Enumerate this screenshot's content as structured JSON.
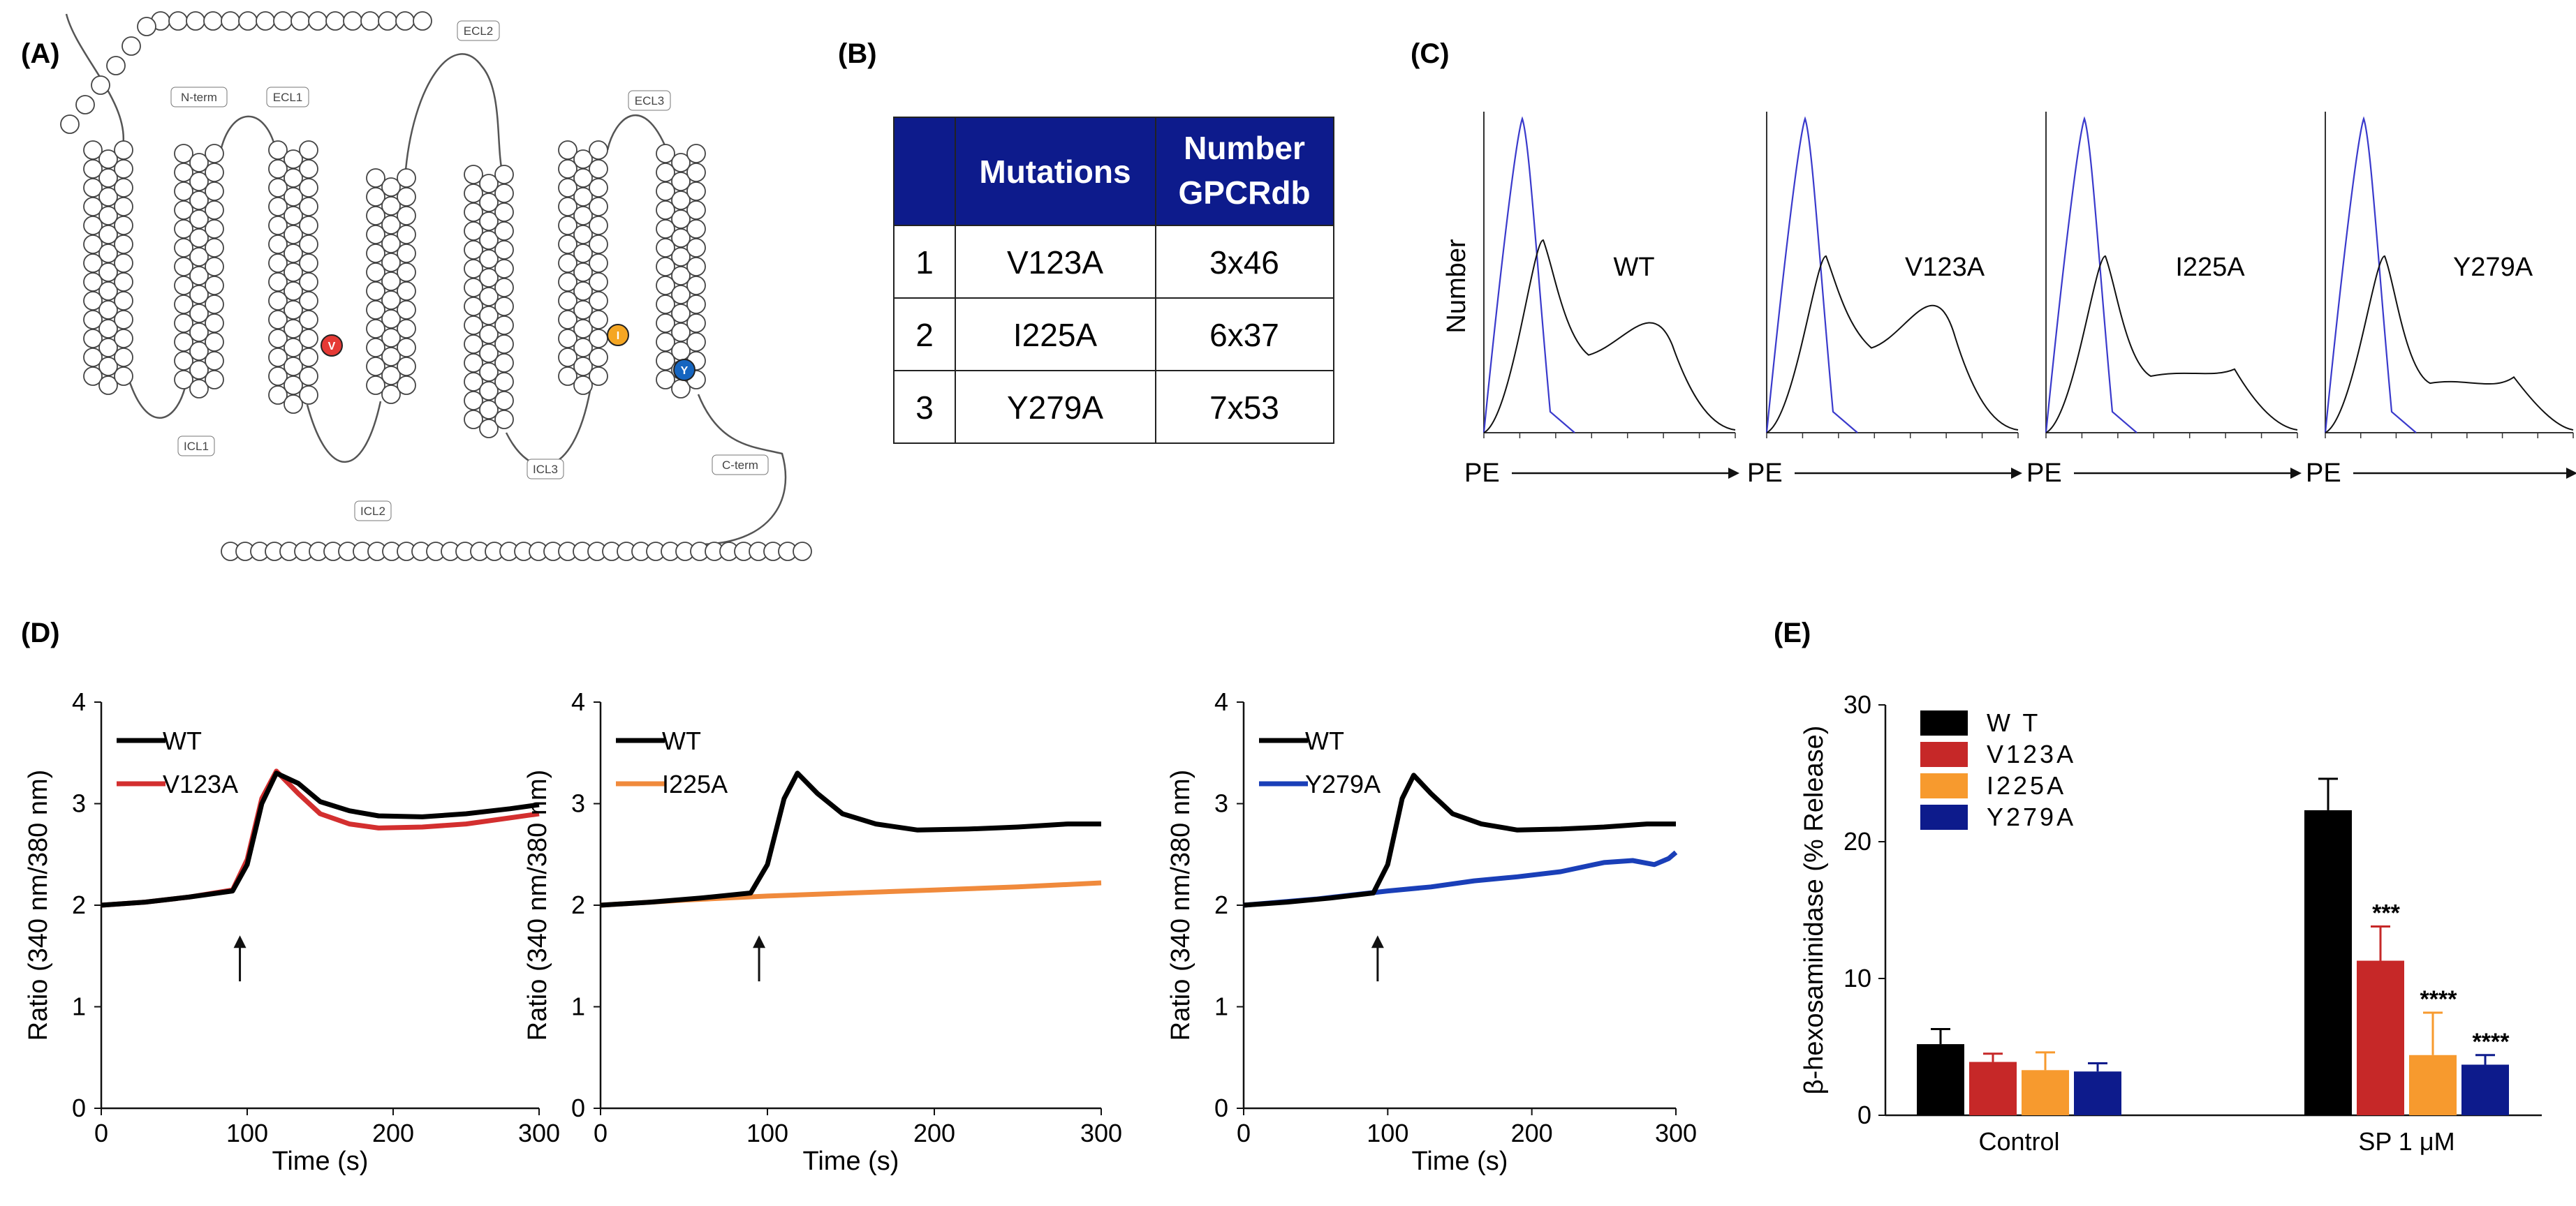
{
  "panels": {
    "a": "(A)",
    "b": "(B)",
    "c": "(C)",
    "d": "(D)",
    "e": "(E)"
  },
  "snake": {
    "n_term": "N-term",
    "c_term": "C-term",
    "ecl1": "ECL1",
    "ecl2": "ECL2",
    "ecl3": "ECL3",
    "icl1": "ICL1",
    "icl2": "ICL2",
    "icl3": "ICL3",
    "highlights": [
      {
        "residue": "V",
        "color": "#e53935"
      },
      {
        "residue": "I",
        "color": "#f5a623"
      },
      {
        "residue": "Y",
        "color": "#1565c0"
      }
    ]
  },
  "table": {
    "header_fill": "#0d1b8c",
    "headers": [
      "",
      "Mutations",
      "Number",
      "GPCRdb"
    ],
    "rows": [
      {
        "n": "1",
        "mutation": "V123A",
        "number": "3x46"
      },
      {
        "n": "2",
        "mutation": "I225A",
        "number": "6x37"
      },
      {
        "n": "3",
        "mutation": "Y279A",
        "number": "7x53"
      }
    ]
  },
  "flow": {
    "ylabel": "Number",
    "xlabel": "PE",
    "colors": {
      "isotype": "#3a3acc",
      "stain": "#111111"
    },
    "panels": [
      {
        "label": "WT"
      },
      {
        "label": "V123A"
      },
      {
        "label": "I225A"
      },
      {
        "label": "Y279A"
      }
    ]
  },
  "chart_data": [
    {
      "type": "line",
      "xlabel": "Time (s)",
      "ylabel": "Ratio (340 nm/380 nm)",
      "xlim": [
        0,
        300
      ],
      "ylim": [
        0,
        4
      ],
      "xticks": [
        0,
        100,
        200,
        300
      ],
      "yticks": [
        0,
        1,
        2,
        3,
        4
      ],
      "arrow_x": 95,
      "series": [
        {
          "name": "WT",
          "color": "#000000",
          "x": [
            0,
            30,
            60,
            90,
            100,
            110,
            120,
            135,
            150,
            170,
            190,
            220,
            250,
            280,
            300
          ],
          "y": [
            2.0,
            2.03,
            2.08,
            2.14,
            2.4,
            3.0,
            3.3,
            3.2,
            3.02,
            2.93,
            2.88,
            2.87,
            2.9,
            2.95,
            2.99
          ]
        },
        {
          "name": "V123A",
          "color": "#d32f2f",
          "x": [
            0,
            30,
            60,
            90,
            100,
            110,
            120,
            135,
            150,
            170,
            190,
            220,
            250,
            280,
            300
          ],
          "y": [
            2.0,
            2.03,
            2.08,
            2.15,
            2.45,
            3.05,
            3.32,
            3.1,
            2.9,
            2.8,
            2.76,
            2.77,
            2.8,
            2.86,
            2.9
          ]
        }
      ]
    },
    {
      "type": "line",
      "xlabel": "Time (s)",
      "ylabel": "Ratio (340 nm/380 nm)",
      "xlim": [
        0,
        300
      ],
      "ylim": [
        0,
        4
      ],
      "xticks": [
        0,
        100,
        200,
        300
      ],
      "yticks": [
        0,
        1,
        2,
        3,
        4
      ],
      "arrow_x": 95,
      "series": [
        {
          "name": "WT",
          "color": "#000000",
          "x": [
            0,
            30,
            60,
            90,
            100,
            110,
            118,
            130,
            145,
            165,
            190,
            220,
            250,
            280,
            300
          ],
          "y": [
            2.0,
            2.03,
            2.07,
            2.12,
            2.4,
            3.05,
            3.3,
            3.1,
            2.9,
            2.8,
            2.74,
            2.75,
            2.77,
            2.8,
            2.8
          ]
        },
        {
          "name": "I225A",
          "color": "#f08a3c",
          "x": [
            0,
            50,
            100,
            150,
            200,
            250,
            300
          ],
          "y": [
            2.0,
            2.05,
            2.09,
            2.12,
            2.15,
            2.18,
            2.22
          ]
        }
      ]
    },
    {
      "type": "line",
      "xlabel": "Time (s)",
      "ylabel": "Ratio (340 nm/380 nm)",
      "xlim": [
        0,
        300
      ],
      "ylim": [
        0,
        4
      ],
      "xticks": [
        0,
        100,
        200,
        300
      ],
      "yticks": [
        0,
        1,
        2,
        3,
        4
      ],
      "arrow_x": 93,
      "series": [
        {
          "name": "WT",
          "color": "#000000",
          "x": [
            0,
            30,
            60,
            90,
            100,
            110,
            118,
            130,
            145,
            165,
            190,
            220,
            250,
            280,
            300
          ],
          "y": [
            2.0,
            2.03,
            2.07,
            2.12,
            2.4,
            3.05,
            3.28,
            3.1,
            2.9,
            2.8,
            2.74,
            2.75,
            2.77,
            2.8,
            2.8
          ]
        },
        {
          "name": "Y279A",
          "color": "#1a3fb8",
          "x": [
            0,
            50,
            100,
            130,
            160,
            190,
            220,
            250,
            270,
            285,
            295,
            300
          ],
          "y": [
            2.0,
            2.06,
            2.14,
            2.18,
            2.24,
            2.28,
            2.33,
            2.42,
            2.44,
            2.4,
            2.46,
            2.52
          ]
        }
      ]
    },
    {
      "type": "bar",
      "ylabel": "β-hexosaminidase (% Release)",
      "ylim": [
        0,
        30
      ],
      "yticks": [
        0,
        10,
        20,
        30
      ],
      "categories": [
        "Control",
        "SP 1 μM"
      ],
      "legend_position": "top-left",
      "series": [
        {
          "name": "W T",
          "color": "#000000",
          "values": [
            5.2,
            22.3
          ],
          "errors": [
            1.1,
            2.3
          ],
          "stars": [
            "",
            ""
          ]
        },
        {
          "name": "V123A",
          "color": "#c62828",
          "values": [
            3.9,
            11.3
          ],
          "errors": [
            0.6,
            2.5
          ],
          "stars": [
            "",
            "***"
          ]
        },
        {
          "name": "I225A",
          "color": "#f79a2e",
          "values": [
            3.3,
            4.4
          ],
          "errors": [
            1.3,
            3.1
          ],
          "stars": [
            "",
            "****"
          ]
        },
        {
          "name": "Y279A",
          "color": "#0d1b8c",
          "values": [
            3.2,
            3.7
          ],
          "errors": [
            0.6,
            0.7
          ],
          "stars": [
            "",
            "****"
          ]
        }
      ]
    }
  ]
}
